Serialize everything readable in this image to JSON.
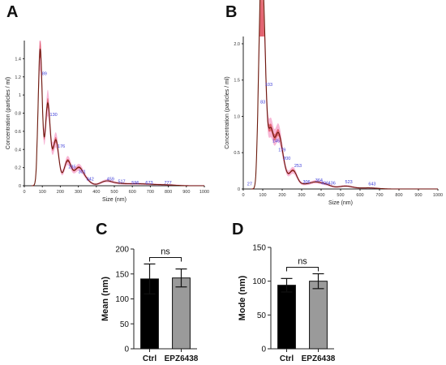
{
  "panels": {
    "A": "A",
    "B": "B",
    "C": "C",
    "D": "D"
  },
  "colors": {
    "curve": "#6b1a0c",
    "band": "#e8308a",
    "band_inner": "#d42020",
    "peak_label": "#3a3ad8",
    "bar_ctrl": "#000000",
    "bar_epz": "#9a9a9a"
  },
  "chart_data": [
    {
      "id": "A",
      "type": "line",
      "xlabel": "Size (nm)",
      "ylabel": "Concentration (particles / ml)",
      "xlim": [
        0,
        1000
      ],
      "ylim": [
        0,
        1.6
      ],
      "xticks": [
        "0",
        "100",
        "200",
        "300",
        "400",
        "500",
        "600",
        "700",
        "800",
        "900",
        "1000"
      ],
      "yticks": [
        "0",
        "0.2",
        "0.4",
        "0.6",
        "0.8",
        "1",
        "1.2",
        "1.4"
      ],
      "peaks": [
        {
          "x": 88,
          "y": 1.5
        },
        {
          "x": 130,
          "y": 0.9
        },
        {
          "x": 175,
          "y": 0.5
        },
        {
          "x": 240,
          "y": 0.27
        },
        {
          "x": 300,
          "y": 0.18
        },
        {
          "x": 340,
          "y": 0.06
        },
        {
          "x": 455,
          "y": 0.05
        },
        {
          "x": 525,
          "y": 0.02
        },
        {
          "x": 600,
          "y": 0.015
        },
        {
          "x": 675,
          "y": 0.015
        },
        {
          "x": 780,
          "y": 0.01
        }
      ],
      "peak_labels": [
        {
          "text": "89",
          "x": 98,
          "y": 1.22
        },
        {
          "text": "130",
          "x": 142,
          "y": 0.77
        },
        {
          "text": "176",
          "x": 185,
          "y": 0.42
        },
        {
          "text": "235",
          "x": 245,
          "y": 0.19
        },
        {
          "text": "301",
          "x": 300,
          "y": 0.14
        },
        {
          "text": "342",
          "x": 345,
          "y": 0.06
        },
        {
          "text": "459",
          "x": 458,
          "y": 0.06
        },
        {
          "text": "517",
          "x": 520,
          "y": 0.03
        },
        {
          "text": "596",
          "x": 596,
          "y": 0.02
        },
        {
          "text": "673",
          "x": 673,
          "y": 0.02
        },
        {
          "text": "777",
          "x": 777,
          "y": 0.02
        }
      ]
    },
    {
      "id": "B",
      "type": "line",
      "xlabel": "Size (nm)",
      "ylabel": "Concentration (particles / ml)",
      "xlim": [
        0,
        1000
      ],
      "ylim": [
        0,
        2.1
      ],
      "xticks": [
        "0",
        "100",
        "200",
        "300",
        "400",
        "500",
        "600",
        "700",
        "800",
        "900",
        "1000"
      ],
      "yticks": [
        "0",
        "0.5",
        "1.0",
        "1.5",
        "2.0"
      ],
      "peaks": [
        {
          "x": 88,
          "y": 2.05
        },
        {
          "x": 105,
          "y": 1.95
        },
        {
          "x": 140,
          "y": 0.75
        },
        {
          "x": 175,
          "y": 0.6
        },
        {
          "x": 200,
          "y": 0.35
        },
        {
          "x": 255,
          "y": 0.25
        },
        {
          "x": 310,
          "y": 0.05
        },
        {
          "x": 365,
          "y": 0.08
        },
        {
          "x": 420,
          "y": 0.06
        },
        {
          "x": 525,
          "y": 0.04
        },
        {
          "x": 645,
          "y": 0.015
        }
      ],
      "peak_labels": [
        {
          "text": "27",
          "x": 20,
          "y": 0.05
        },
        {
          "text": "83",
          "x": 88,
          "y": 1.18
        },
        {
          "text": "103",
          "x": 112,
          "y": 1.42
        },
        {
          "text": "145",
          "x": 150,
          "y": 0.64
        },
        {
          "text": "179",
          "x": 180,
          "y": 0.52
        },
        {
          "text": "200",
          "x": 205,
          "y": 0.4
        },
        {
          "text": "253",
          "x": 262,
          "y": 0.3
        },
        {
          "text": "306",
          "x": 306,
          "y": 0.08
        },
        {
          "text": "364",
          "x": 370,
          "y": 0.1
        },
        {
          "text": "406",
          "x": 400,
          "y": 0.06
        },
        {
          "text": "436",
          "x": 436,
          "y": 0.06
        },
        {
          "text": "523",
          "x": 523,
          "y": 0.08
        },
        {
          "text": "643",
          "x": 643,
          "y": 0.05
        }
      ]
    },
    {
      "id": "C",
      "type": "bar",
      "categories": [
        "Ctrl",
        "EPZ6438"
      ],
      "values": [
        140,
        142
      ],
      "errors": [
        30,
        18
      ],
      "ylabel": "Mean (nm)",
      "ylim": [
        0,
        200
      ],
      "yticks": [
        "0",
        "50",
        "100",
        "150",
        "200"
      ],
      "significance": "ns"
    },
    {
      "id": "D",
      "type": "bar",
      "categories": [
        "Ctrl",
        "EPZ6438"
      ],
      "values": [
        94,
        100
      ],
      "errors": [
        10,
        11
      ],
      "ylabel": "Mode (nm)",
      "ylim": [
        0,
        150
      ],
      "yticks": [
        "0",
        "50",
        "100",
        "150"
      ],
      "significance": "ns"
    }
  ]
}
